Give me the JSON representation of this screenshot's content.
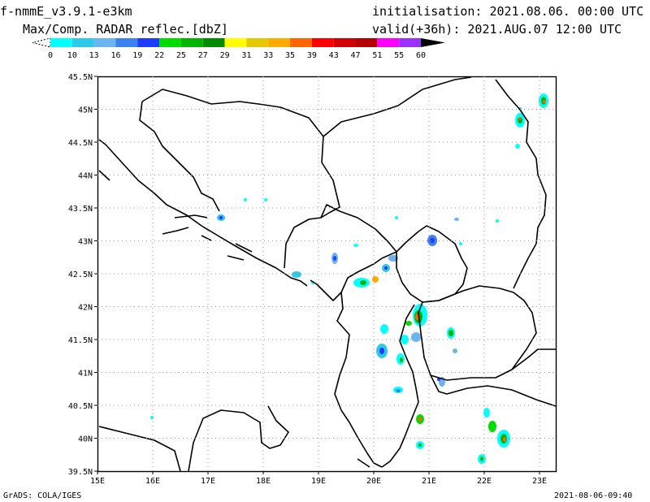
{
  "header": {
    "model_name": "f-nmmE_v3.9.1-e3km",
    "product": "Max/Comp. RADAR reflec.[dbZ]",
    "init_label": "initialisation:",
    "init_value": "2021.08.06. 00:00 UTC",
    "valid_label": "valid(+36h):",
    "valid_value": "2021.AUG.07 12:00 UTC"
  },
  "colorbar": {
    "ticks": [
      "0",
      "10",
      "13",
      "16",
      "19",
      "22",
      "25",
      "27",
      "29",
      "31",
      "33",
      "35",
      "39",
      "43",
      "47",
      "51",
      "55",
      "60"
    ],
    "colors": [
      "#00ffff",
      "#2ec8e8",
      "#6ab4f0",
      "#3c82ee",
      "#1e3cff",
      "#00dc00",
      "#00b400",
      "#008c00",
      "#ffff00",
      "#e6c800",
      "#ffaa00",
      "#ff6400",
      "#ff0000",
      "#d20000",
      "#b40000",
      "#ff00ff",
      "#9b30ff"
    ]
  },
  "map": {
    "lat_labels": [
      "45.5N",
      "45N",
      "44.5N",
      "44N",
      "43.5N",
      "43N",
      "42.5N",
      "42N",
      "41.5N",
      "41N",
      "40.5N",
      "40N",
      "39.5N"
    ],
    "lon_labels": [
      "15E",
      "16E",
      "17E",
      "18E",
      "19E",
      "20E",
      "21E",
      "22E",
      "23E"
    ]
  },
  "footer": {
    "left": "GrADS: COLA/IGES",
    "right": "2021-08-06-09:40"
  }
}
